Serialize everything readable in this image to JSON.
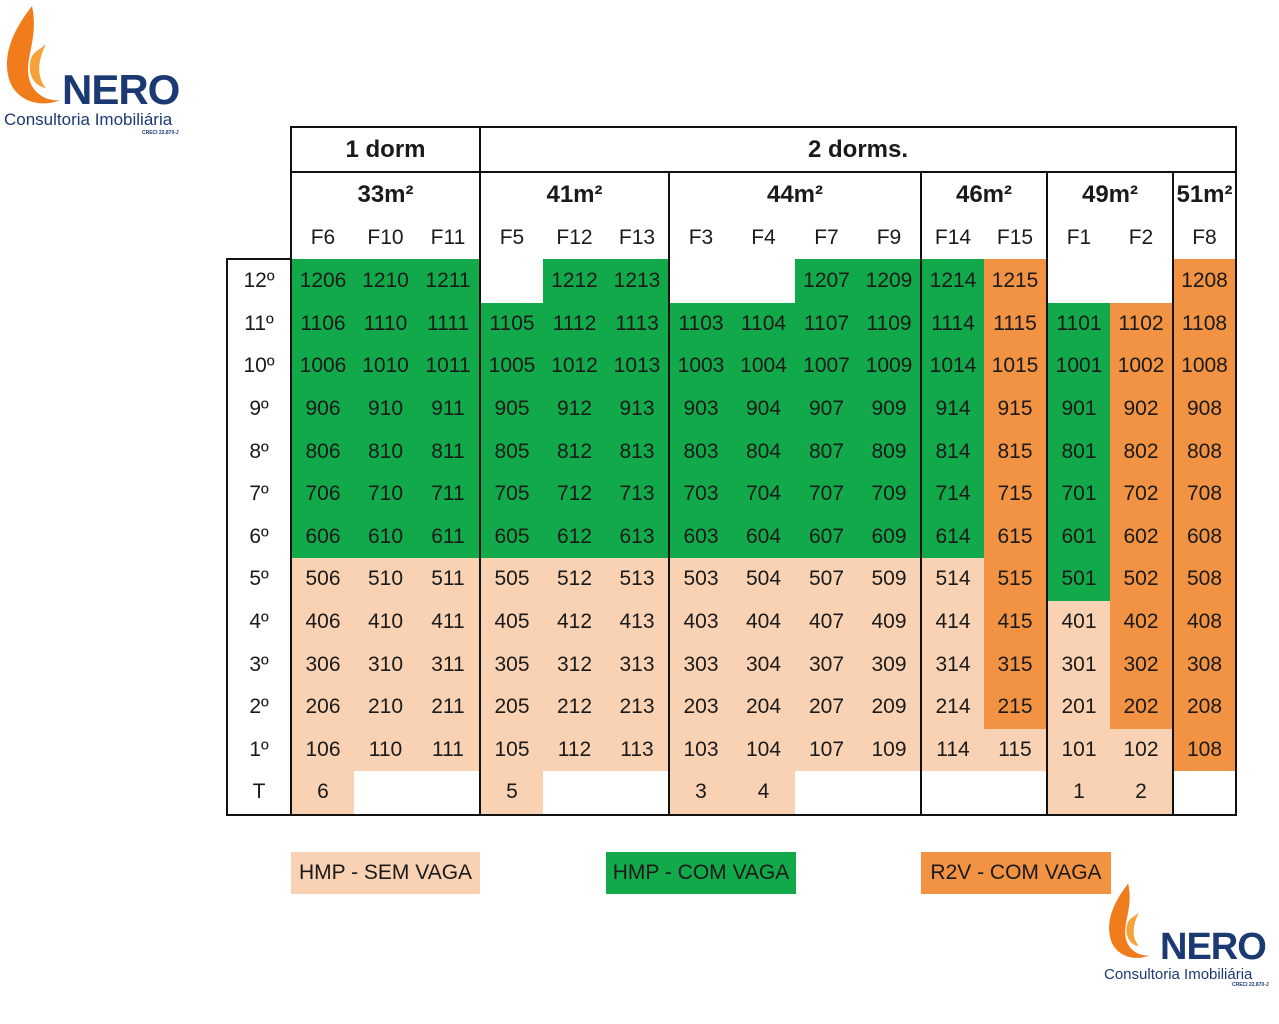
{
  "logo": {
    "brand": "NERO",
    "subtitle": "Consultoria Imobiliária",
    "creci": "CRECI 22.870-J"
  },
  "table": {
    "types": [
      {
        "label": "1 dorm",
        "span": 3
      },
      {
        "label": "2 dorms.",
        "span": 12
      }
    ],
    "areas": [
      {
        "label": "33m²",
        "span": 3
      },
      {
        "label": "41m²",
        "span": 3
      },
      {
        "label": "44m²",
        "span": 4
      },
      {
        "label": "46m²",
        "span": 2
      },
      {
        "label": "49m²",
        "span": 2
      },
      {
        "label": "51m²",
        "span": 1
      }
    ],
    "columns": [
      "F6",
      "F10",
      "F11",
      "F5",
      "F12",
      "F13",
      "F3",
      "F4",
      "F7",
      "F9",
      "F14",
      "F15",
      "F1",
      "F2",
      "F8"
    ],
    "rows": [
      {
        "floor": "12º",
        "cells": [
          [
            "1206",
            "g"
          ],
          [
            "1210",
            "g"
          ],
          [
            "1211",
            "g"
          ],
          [
            "",
            "w"
          ],
          [
            "1212",
            "g"
          ],
          [
            "1213",
            "g"
          ],
          [
            "",
            "w"
          ],
          [
            "",
            "w"
          ],
          [
            "1207",
            "g"
          ],
          [
            "1209",
            "g"
          ],
          [
            "1214",
            "g"
          ],
          [
            "1215",
            "o"
          ],
          [
            "",
            "w"
          ],
          [
            "",
            "w"
          ],
          [
            "1208",
            "o"
          ]
        ]
      },
      {
        "floor": "11º",
        "cells": [
          [
            "1106",
            "g"
          ],
          [
            "1110",
            "g"
          ],
          [
            "1111",
            "g"
          ],
          [
            "1105",
            "g"
          ],
          [
            "1112",
            "g"
          ],
          [
            "1113",
            "g"
          ],
          [
            "1103",
            "g"
          ],
          [
            "1104",
            "g"
          ],
          [
            "1107",
            "g"
          ],
          [
            "1109",
            "g"
          ],
          [
            "1114",
            "g"
          ],
          [
            "1115",
            "o"
          ],
          [
            "1101",
            "g"
          ],
          [
            "1102",
            "o"
          ],
          [
            "1108",
            "o"
          ]
        ]
      },
      {
        "floor": "10º",
        "cells": [
          [
            "1006",
            "g"
          ],
          [
            "1010",
            "g"
          ],
          [
            "1011",
            "g"
          ],
          [
            "1005",
            "g"
          ],
          [
            "1012",
            "g"
          ],
          [
            "1013",
            "g"
          ],
          [
            "1003",
            "g"
          ],
          [
            "1004",
            "g"
          ],
          [
            "1007",
            "g"
          ],
          [
            "1009",
            "g"
          ],
          [
            "1014",
            "g"
          ],
          [
            "1015",
            "o"
          ],
          [
            "1001",
            "g"
          ],
          [
            "1002",
            "o"
          ],
          [
            "1008",
            "o"
          ]
        ]
      },
      {
        "floor": "9º",
        "cells": [
          [
            "906",
            "g"
          ],
          [
            "910",
            "g"
          ],
          [
            "911",
            "g"
          ],
          [
            "905",
            "g"
          ],
          [
            "912",
            "g"
          ],
          [
            "913",
            "g"
          ],
          [
            "903",
            "g"
          ],
          [
            "904",
            "g"
          ],
          [
            "907",
            "g"
          ],
          [
            "909",
            "g"
          ],
          [
            "914",
            "g"
          ],
          [
            "915",
            "o"
          ],
          [
            "901",
            "g"
          ],
          [
            "902",
            "o"
          ],
          [
            "908",
            "o"
          ]
        ]
      },
      {
        "floor": "8º",
        "cells": [
          [
            "806",
            "g"
          ],
          [
            "810",
            "g"
          ],
          [
            "811",
            "g"
          ],
          [
            "805",
            "g"
          ],
          [
            "812",
            "g"
          ],
          [
            "813",
            "g"
          ],
          [
            "803",
            "g"
          ],
          [
            "804",
            "g"
          ],
          [
            "807",
            "g"
          ],
          [
            "809",
            "g"
          ],
          [
            "814",
            "g"
          ],
          [
            "815",
            "o"
          ],
          [
            "801",
            "g"
          ],
          [
            "802",
            "o"
          ],
          [
            "808",
            "o"
          ]
        ]
      },
      {
        "floor": "7º",
        "cells": [
          [
            "706",
            "g"
          ],
          [
            "710",
            "g"
          ],
          [
            "711",
            "g"
          ],
          [
            "705",
            "g"
          ],
          [
            "712",
            "g"
          ],
          [
            "713",
            "g"
          ],
          [
            "703",
            "g"
          ],
          [
            "704",
            "g"
          ],
          [
            "707",
            "g"
          ],
          [
            "709",
            "g"
          ],
          [
            "714",
            "g"
          ],
          [
            "715",
            "o"
          ],
          [
            "701",
            "g"
          ],
          [
            "702",
            "o"
          ],
          [
            "708",
            "o"
          ]
        ]
      },
      {
        "floor": "6º",
        "cells": [
          [
            "606",
            "g"
          ],
          [
            "610",
            "g"
          ],
          [
            "611",
            "g"
          ],
          [
            "605",
            "g"
          ],
          [
            "612",
            "g"
          ],
          [
            "613",
            "g"
          ],
          [
            "603",
            "g"
          ],
          [
            "604",
            "g"
          ],
          [
            "607",
            "g"
          ],
          [
            "609",
            "g"
          ],
          [
            "614",
            "g"
          ],
          [
            "615",
            "o"
          ],
          [
            "601",
            "g"
          ],
          [
            "602",
            "o"
          ],
          [
            "608",
            "o"
          ]
        ]
      },
      {
        "floor": "5º",
        "cells": [
          [
            "506",
            "s"
          ],
          [
            "510",
            "s"
          ],
          [
            "511",
            "s"
          ],
          [
            "505",
            "s"
          ],
          [
            "512",
            "s"
          ],
          [
            "513",
            "s"
          ],
          [
            "503",
            "s"
          ],
          [
            "504",
            "s"
          ],
          [
            "507",
            "s"
          ],
          [
            "509",
            "s"
          ],
          [
            "514",
            "s"
          ],
          [
            "515",
            "o"
          ],
          [
            "501",
            "g"
          ],
          [
            "502",
            "o"
          ],
          [
            "508",
            "o"
          ]
        ]
      },
      {
        "floor": "4º",
        "cells": [
          [
            "406",
            "s"
          ],
          [
            "410",
            "s"
          ],
          [
            "411",
            "s"
          ],
          [
            "405",
            "s"
          ],
          [
            "412",
            "s"
          ],
          [
            "413",
            "s"
          ],
          [
            "403",
            "s"
          ],
          [
            "404",
            "s"
          ],
          [
            "407",
            "s"
          ],
          [
            "409",
            "s"
          ],
          [
            "414",
            "s"
          ],
          [
            "415",
            "o"
          ],
          [
            "401",
            "s"
          ],
          [
            "402",
            "o"
          ],
          [
            "408",
            "o"
          ]
        ]
      },
      {
        "floor": "3º",
        "cells": [
          [
            "306",
            "s"
          ],
          [
            "310",
            "s"
          ],
          [
            "311",
            "s"
          ],
          [
            "305",
            "s"
          ],
          [
            "312",
            "s"
          ],
          [
            "313",
            "s"
          ],
          [
            "303",
            "s"
          ],
          [
            "304",
            "s"
          ],
          [
            "307",
            "s"
          ],
          [
            "309",
            "s"
          ],
          [
            "314",
            "s"
          ],
          [
            "315",
            "o"
          ],
          [
            "301",
            "s"
          ],
          [
            "302",
            "o"
          ],
          [
            "308",
            "o"
          ]
        ]
      },
      {
        "floor": "2º",
        "cells": [
          [
            "206",
            "s"
          ],
          [
            "210",
            "s"
          ],
          [
            "211",
            "s"
          ],
          [
            "205",
            "s"
          ],
          [
            "212",
            "s"
          ],
          [
            "213",
            "s"
          ],
          [
            "203",
            "s"
          ],
          [
            "204",
            "s"
          ],
          [
            "207",
            "s"
          ],
          [
            "209",
            "s"
          ],
          [
            "214",
            "s"
          ],
          [
            "215",
            "o"
          ],
          [
            "201",
            "s"
          ],
          [
            "202",
            "o"
          ],
          [
            "208",
            "o"
          ]
        ]
      },
      {
        "floor": "1º",
        "cells": [
          [
            "106",
            "s"
          ],
          [
            "110",
            "s"
          ],
          [
            "111",
            "s"
          ],
          [
            "105",
            "s"
          ],
          [
            "112",
            "s"
          ],
          [
            "113",
            "s"
          ],
          [
            "103",
            "s"
          ],
          [
            "104",
            "s"
          ],
          [
            "107",
            "s"
          ],
          [
            "109",
            "s"
          ],
          [
            "114",
            "s"
          ],
          [
            "115",
            "s"
          ],
          [
            "101",
            "s"
          ],
          [
            "102",
            "s"
          ],
          [
            "108",
            "o"
          ]
        ]
      },
      {
        "floor": "T",
        "cells": [
          [
            "6",
            "s"
          ],
          [
            "",
            "w"
          ],
          [
            "",
            "w"
          ],
          [
            "5",
            "s"
          ],
          [
            "",
            "w"
          ],
          [
            "",
            "w"
          ],
          [
            "3",
            "s"
          ],
          [
            "4",
            "s"
          ],
          [
            "",
            "w"
          ],
          [
            "",
            "w"
          ],
          [
            "",
            "w"
          ],
          [
            "",
            "w"
          ],
          [
            "1",
            "s"
          ],
          [
            "2",
            "s"
          ],
          [
            "",
            "w"
          ]
        ]
      }
    ]
  },
  "legend": [
    {
      "label": "HMP - SEM VAGA",
      "key": "s"
    },
    {
      "label": "HMP - COM VAGA",
      "key": "g"
    },
    {
      "label": "R2V - COM VAGA",
      "key": "o"
    }
  ],
  "colors": {
    "s": "#f9d2b3",
    "g": "#11a94a",
    "o": "#f29243",
    "w": "#ffffff",
    "brand_blue": "#1b3a73",
    "flame_orange": "#f07c1c"
  }
}
